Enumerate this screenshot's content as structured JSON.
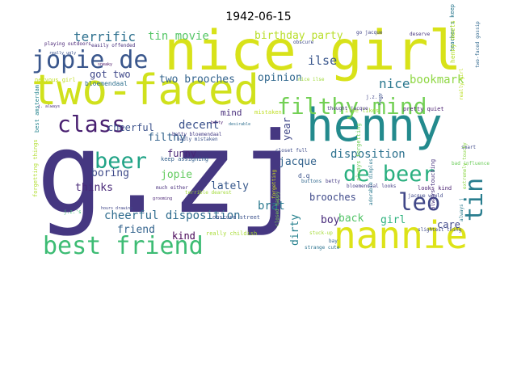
{
  "title": "1942-06-15",
  "words": [
    {
      "text": "g.zj",
      "color": "#453781"
    },
    {
      "text": "nice girl",
      "color": "#d8e219"
    },
    {
      "text": "henny",
      "color": "#238a8d"
    },
    {
      "text": "two-faced",
      "color": "#d0e11c"
    },
    {
      "text": "nannie",
      "color": "#dde318"
    },
    {
      "text": "best friend",
      "color": "#3dbc74"
    },
    {
      "text": "jopie de",
      "color": "#39568c"
    },
    {
      "text": "filthy mind",
      "color": "#73d055"
    },
    {
      "text": "class",
      "color": "#481f70"
    },
    {
      "text": "de beer",
      "color": "#29af7f"
    },
    {
      "text": "beer",
      "color": "#20a386"
    },
    {
      "text": "leo",
      "color": "#404788"
    },
    {
      "text": "tin",
      "color": "#287d8e"
    },
    {
      "text": "terrific",
      "color": "#2d708e"
    },
    {
      "text": "tin movie",
      "color": "#55c667"
    },
    {
      "text": "birthday party",
      "color": "#b8de29"
    },
    {
      "text": "got two",
      "color": "#3f4889"
    },
    {
      "text": "two brooches",
      "color": "#33638d"
    },
    {
      "text": "opinion",
      "color": "#31688e"
    },
    {
      "text": "ilse",
      "color": "#39568c"
    },
    {
      "text": "nice",
      "color": "#2a778e"
    },
    {
      "text": "bookmark",
      "color": "#8fd744"
    },
    {
      "text": "disposition",
      "color": "#2c718e"
    },
    {
      "text": "filthy",
      "color": "#33638d"
    },
    {
      "text": "decent",
      "color": "#3b528b"
    },
    {
      "text": "mind",
      "color": "#472d7b"
    },
    {
      "text": "cheerful",
      "color": "#3b528b"
    },
    {
      "text": "funny",
      "color": "#482576"
    },
    {
      "text": "jopie",
      "color": "#63cb5f"
    },
    {
      "text": "jacque",
      "color": "#33638d"
    },
    {
      "text": "year",
      "color": "#3f4788"
    },
    {
      "text": "boring",
      "color": "#3e4a89"
    },
    {
      "text": "lately",
      "color": "#38598c"
    },
    {
      "text": "thinks",
      "color": "#482878"
    },
    {
      "text": "brooches",
      "color": "#3e4989"
    },
    {
      "text": "cheerful disposition",
      "color": "#2f6c8e"
    },
    {
      "text": "friend",
      "color": "#33638d"
    },
    {
      "text": "brat",
      "color": "#2a788e"
    },
    {
      "text": "boy",
      "color": "#472a7a"
    },
    {
      "text": "back",
      "color": "#54c568"
    },
    {
      "text": "girl",
      "color": "#2db27d"
    },
    {
      "text": "care",
      "color": "#3f4788"
    },
    {
      "text": "kind",
      "color": "#440154"
    },
    {
      "text": "dirty",
      "color": "#26818e"
    },
    {
      "text": "teacher's keep",
      "color": "#2a788e"
    },
    {
      "text": "henny meets",
      "color": "#b5de2b"
    },
    {
      "text": "go jacque",
      "color": "#414487"
    },
    {
      "text": "deserve",
      "color": "#46337e"
    },
    {
      "text": "two-faced gossip",
      "color": "#31688e"
    },
    {
      "text": "playing outdoors",
      "color": "#482475"
    },
    {
      "text": "easily offended",
      "color": "#472f7d"
    },
    {
      "text": "nervous girl",
      "color": "#c2df23"
    },
    {
      "text": "bloemendaal",
      "color": "#2d708e"
    },
    {
      "text": "obscure",
      "color": "#3e4a89"
    },
    {
      "text": "really girl",
      "color": "#bddf26"
    },
    {
      "text": "j.z.'s",
      "color": "#404688"
    },
    {
      "text": "ilse likes",
      "color": "#9fda3a"
    },
    {
      "text": "thought jacque",
      "color": "#46327e"
    },
    {
      "text": "pretty quiet",
      "color": "#481d6f"
    },
    {
      "text": "j. always",
      "color": "#472c7a"
    },
    {
      "text": "best amsterdam",
      "color": "#25848e"
    },
    {
      "text": "betty bloemendaal",
      "color": "#443b84"
    },
    {
      "text": "badly mistaken",
      "color": "#3b528b"
    },
    {
      "text": "desirable",
      "color": "#2e6f8e"
    },
    {
      "text": "mistaken",
      "color": "#c0df25"
    },
    {
      "text": "closet full",
      "color": "#3e4c8a"
    },
    {
      "text": "bloemendaal looks",
      "color": "#433e85"
    },
    {
      "text": "smart",
      "color": "#3e4989"
    },
    {
      "text": "bad influence",
      "color": "#6ccd5a"
    },
    {
      "text": "keep assigning",
      "color": "#34608d"
    },
    {
      "text": "much either",
      "color": "#472d7b"
    },
    {
      "text": "terrible dearest",
      "color": "#a2da37"
    },
    {
      "text": "looks kind",
      "color": "#481f70"
    },
    {
      "text": "d.q",
      "color": "#3b528b"
    },
    {
      "text": "buttons",
      "color": "#31688e"
    },
    {
      "text": "betty",
      "color": "#443983"
    },
    {
      "text": "jacque would",
      "color": "#3f4889"
    },
    {
      "text": "always j",
      "color": "#287c8e"
    },
    {
      "text": "forgetting things",
      "color": "#b0dd2f"
    },
    {
      "text": "j.z.'s",
      "color": "#3dbc74"
    },
    {
      "text": "hours drawing",
      "color": "#404688"
    },
    {
      "text": "closed happy",
      "color": "#7fd34e"
    },
    {
      "text": "really childish",
      "color": "#a8db34"
    },
    {
      "text": "obscure street",
      "color": "#3b518b"
    },
    {
      "text": "forgetting",
      "color": "#d2e21b"
    },
    {
      "text": "always forgetting",
      "color": "#6ece58"
    },
    {
      "text": "always touching",
      "color": "#46327e"
    },
    {
      "text": "stuck-up",
      "color": "#a5db36"
    },
    {
      "text": "slightest thing",
      "color": "#3e4989"
    },
    {
      "text": "strange cute",
      "color": "#2c728e"
    },
    {
      "text": "bay",
      "color": "#32648e"
    },
    {
      "text": "grooming",
      "color": "#482173"
    },
    {
      "text": "adorable dimples",
      "color": "#2a788e"
    },
    {
      "text": "extremely touchy",
      "color": "#8bd646"
    },
    {
      "text": "really ugly",
      "color": "#3b528b"
    },
    {
      "text": "nice ilse",
      "color": "#a0da39"
    },
    {
      "text": "betty",
      "color": "#481c6e"
    },
    {
      "text": "happy",
      "color": "#3a548c"
    },
    {
      "text": "sneaky",
      "color": "#471063"
    }
  ]
}
